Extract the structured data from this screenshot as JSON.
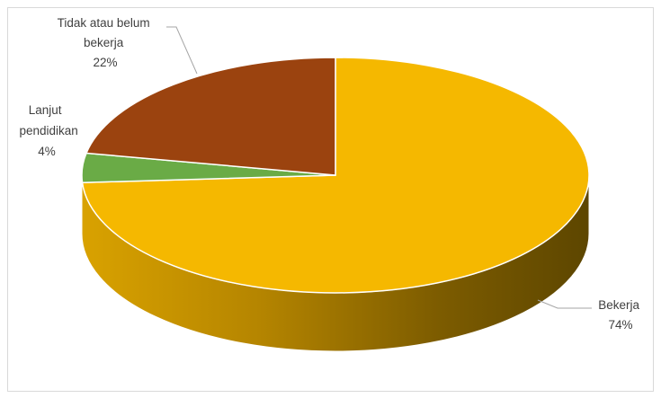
{
  "chart_data": {
    "type": "pie",
    "title": "",
    "three_d": true,
    "slices": [
      {
        "label_lines": [
          "Bekerja"
        ],
        "percent_label": "74%",
        "value": 74,
        "color": "#f5b800"
      },
      {
        "label_lines": [
          "Lanjut",
          "pendidikan"
        ],
        "percent_label": "4%",
        "value": 4,
        "color": "#6aab46"
      },
      {
        "label_lines": [
          "Tidak atau belum",
          "bekerja"
        ],
        "percent_label": "22%",
        "value": 22,
        "color": "#9b430f"
      }
    ],
    "legend": "none",
    "data_labels": "outside with leader lines"
  }
}
